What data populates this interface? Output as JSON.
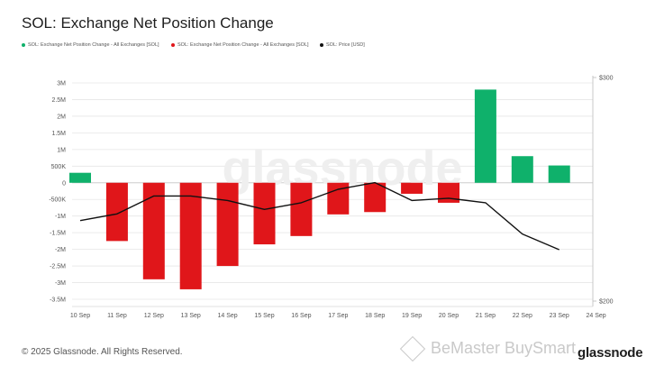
{
  "title": "SOL: Exchange Net Position Change",
  "legend": [
    {
      "label": "SOL: Exchange Net Position Change - All Exchanges [SOL]",
      "color": "#0fb16b"
    },
    {
      "label": "SOL: Exchange Net Position Change - All Exchanges [SOL]",
      "color": "#e0161a"
    },
    {
      "label": "SOL: Price [USD]",
      "color": "#111111"
    }
  ],
  "footer": "© 2025 Glassnode. All Rights Reserved.",
  "watermark_text": "glassnode",
  "brand_logo": "glassnode",
  "overlay_watermark": "BeMaster BuySmart",
  "colors": {
    "positive": "#0fb16b",
    "negative": "#e0161a",
    "price_line": "#111111",
    "grid": "#e6e6e6"
  },
  "chart_data": {
    "type": "bar",
    "categories": [
      "10 Sep",
      "11 Sep",
      "12 Sep",
      "13 Sep",
      "14 Sep",
      "15 Sep",
      "16 Sep",
      "17 Sep",
      "18 Sep",
      "19 Sep",
      "20 Sep",
      "21 Sep",
      "22 Sep",
      "23 Sep",
      "24 Sep"
    ],
    "series": [
      {
        "name": "SOL: Exchange Net Position Change - All Exchanges [SOL]",
        "type": "bar",
        "axis": "left",
        "values": [
          300000,
          -1750000,
          -2900000,
          -3200000,
          -2500000,
          -1850000,
          -1600000,
          -950000,
          -880000,
          -330000,
          -600000,
          2800000,
          800000,
          520000,
          null
        ]
      },
      {
        "name": "SOL: Price [USD]",
        "type": "line",
        "axis": "right",
        "values": [
          236,
          239,
          247,
          247,
          245,
          241,
          244,
          250,
          253,
          245,
          246,
          244,
          230,
          223,
          null
        ]
      }
    ],
    "y_left": {
      "ylim": [
        -3500000,
        3000000
      ],
      "ticks": [
        3000000,
        2500000,
        2000000,
        1500000,
        1000000,
        500000,
        0,
        -500000,
        -1000000,
        -1500000,
        -2000000,
        -2500000,
        -3000000,
        -3500000
      ],
      "tick_labels": [
        "3M",
        "2.5M",
        "2M",
        "1.5M",
        "1M",
        "500K",
        "0",
        "-500K",
        "-1M",
        "-1.5M",
        "-2M",
        "-2.5M",
        "-3M",
        "-3.5M"
      ]
    },
    "y_right": {
      "ylim": [
        200,
        300
      ],
      "ticks": [
        300,
        200
      ],
      "tick_labels": [
        "$300",
        "$200"
      ]
    },
    "grid": true
  }
}
